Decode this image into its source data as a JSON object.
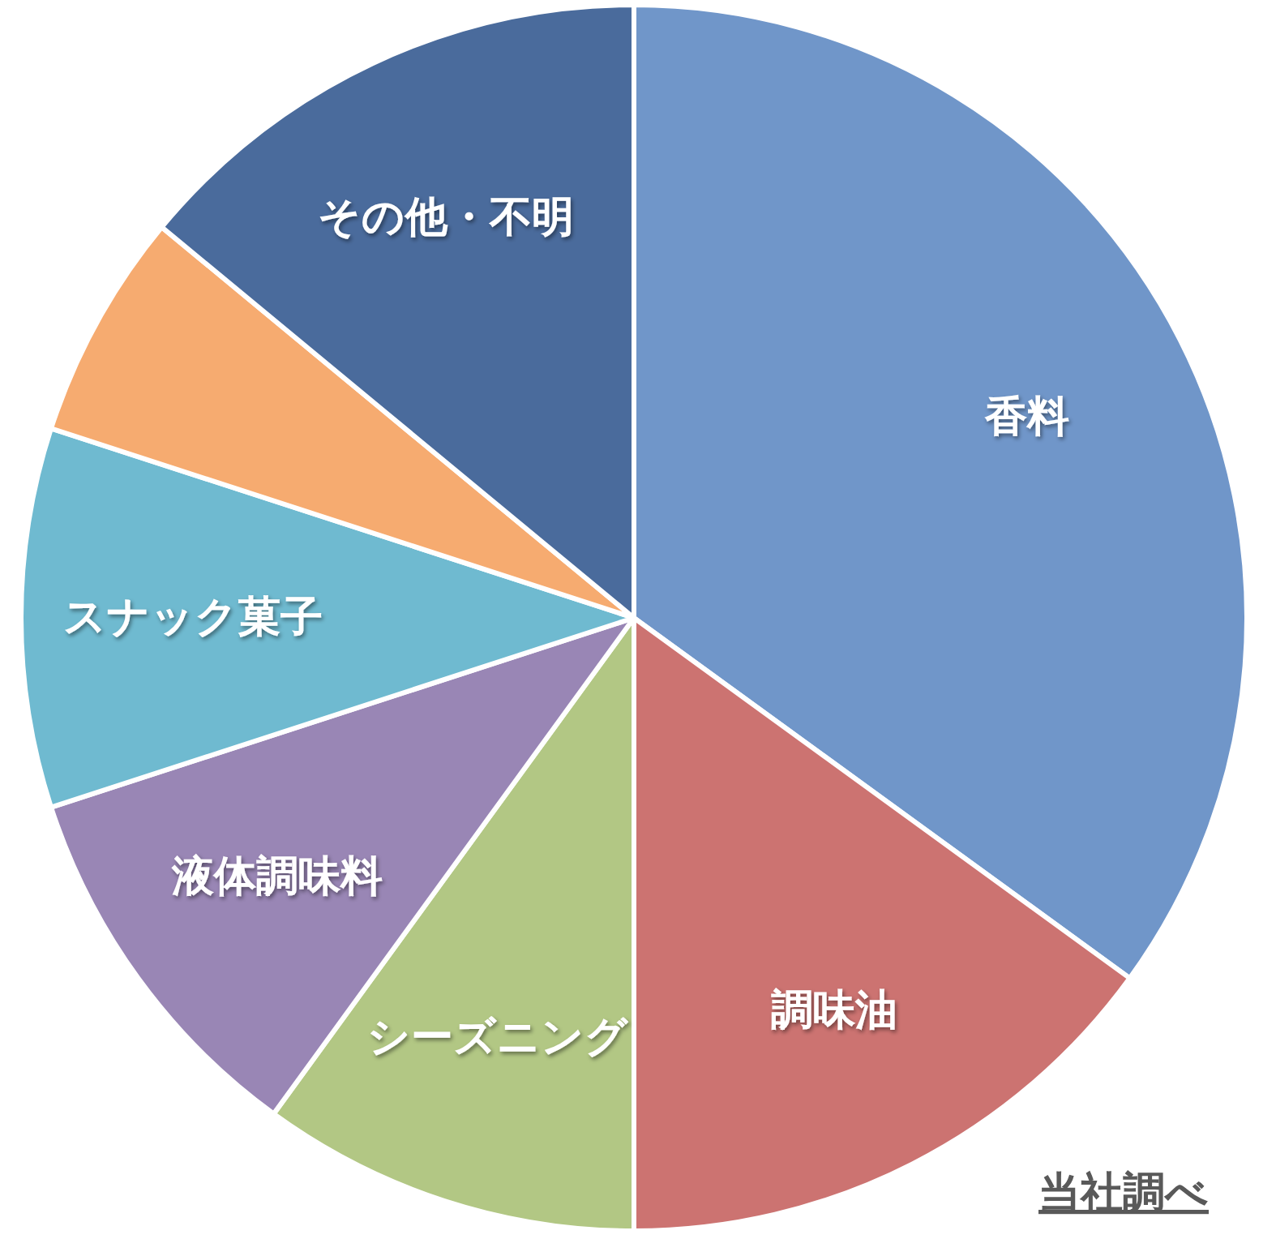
{
  "chart_data": {
    "type": "pie",
    "categories": [
      "香料",
      "調味油",
      "シーズニング",
      "液体調味料",
      "スナック菓子",
      null,
      "その他・不明"
    ],
    "values": [
      35,
      15,
      10,
      10,
      10,
      6,
      14
    ],
    "colors": [
      "#7096c9",
      "#cc7371",
      "#b2c784",
      "#9986b5",
      "#6fbad0",
      "#f6ab70",
      "#4a6b9c"
    ],
    "annotations": [
      "当社調べ"
    ]
  }
}
